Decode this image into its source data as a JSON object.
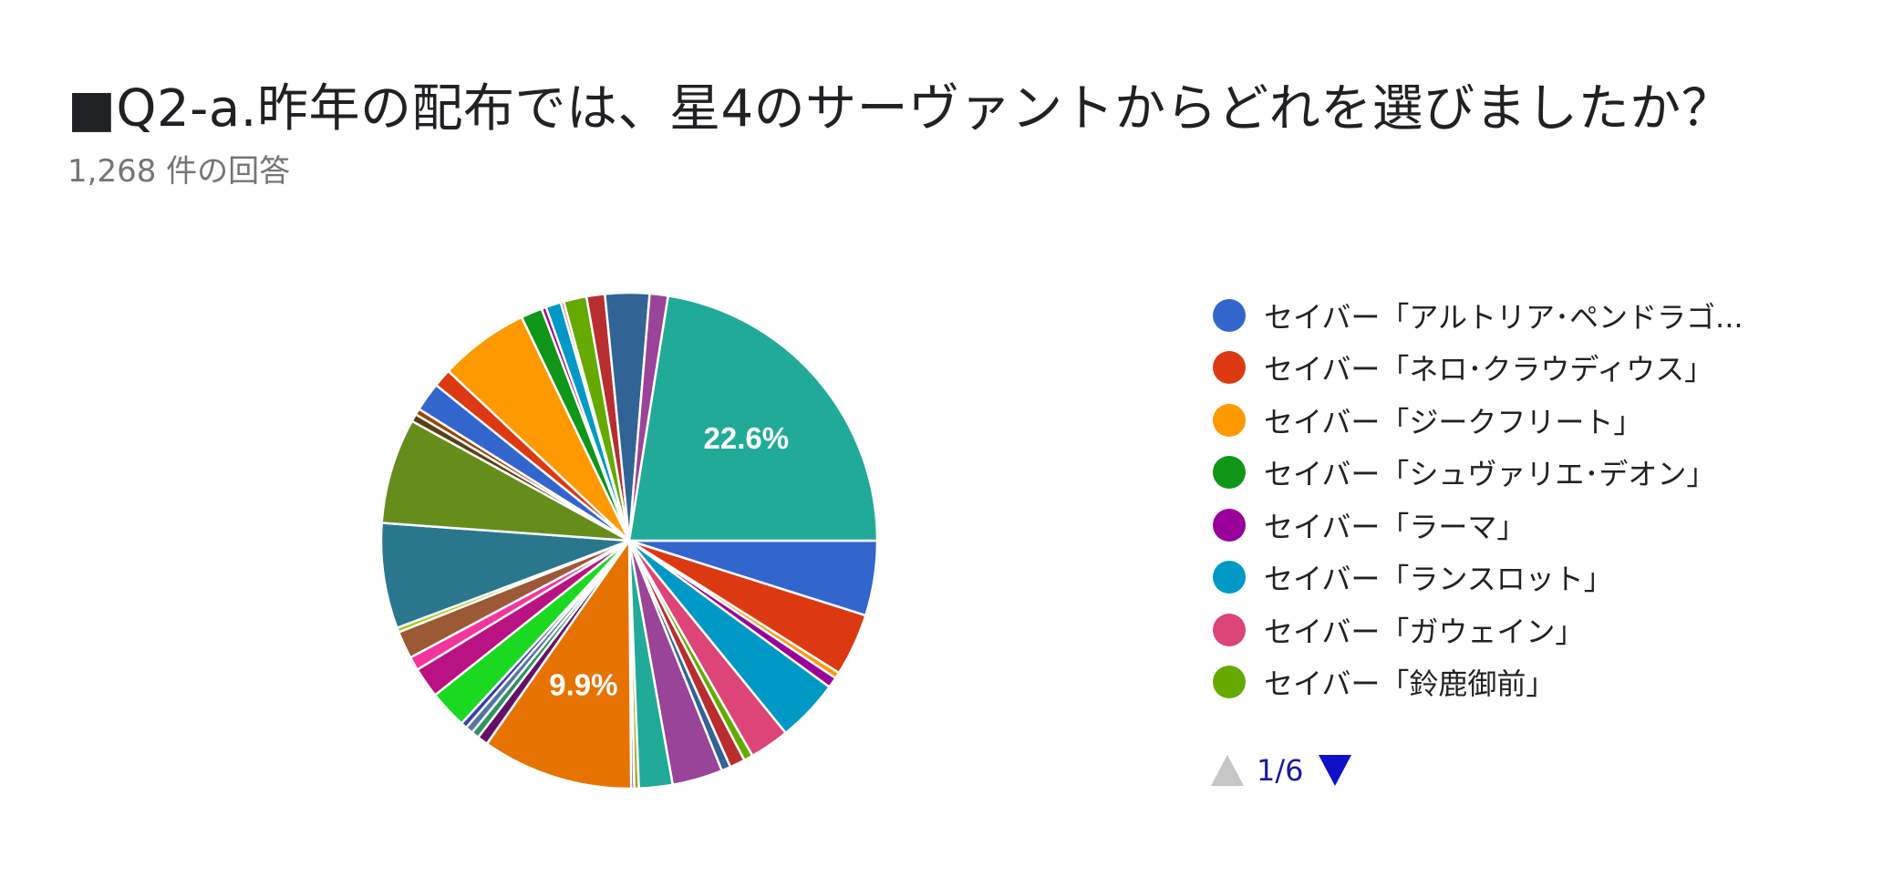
{
  "header": {
    "title": "■Q2-a.昨年の配布では、星4のサーヴァントからどれを選びましたか？",
    "subtitle": "1,268 件の回答"
  },
  "legend": {
    "items": [
      {
        "label": "セイバー「アルトリア･ペンドラゴ...",
        "color": "#3366cc"
      },
      {
        "label": "セイバー「ネロ･クラウディウス」",
        "color": "#dc3912"
      },
      {
        "label": "セイバー「ジークフリート」",
        "color": "#ff9900"
      },
      {
        "label": "セイバー「シュヴァリエ･デオン」",
        "color": "#109618"
      },
      {
        "label": "セイバー「ラーマ」",
        "color": "#990099"
      },
      {
        "label": "セイバー「ランスロット」",
        "color": "#0099c6"
      },
      {
        "label": "セイバー「ガウェイン」",
        "color": "#dd4477"
      },
      {
        "label": "セイバー「鈴鹿御前」",
        "color": "#66aa00"
      }
    ]
  },
  "pager": {
    "text": "1/6"
  },
  "chart_data": {
    "type": "pie",
    "title": "■Q2-a.昨年の配布では、星4のサーヴァントからどれを選びましたか？",
    "subtitle": "1,268 件の回答",
    "legend_position": "right",
    "slices": [
      {
        "value": 4.9,
        "color": "#3366cc"
      },
      {
        "value": 4.1,
        "color": "#dc3912"
      },
      {
        "value": 0.4,
        "color": "#ff9900"
      },
      {
        "value": 0.7,
        "color": "#990099"
      },
      {
        "value": 4.1,
        "color": "#0099c6"
      },
      {
        "value": 2.6,
        "color": "#dd4477"
      },
      {
        "value": 0.6,
        "color": "#66aa00"
      },
      {
        "value": 1.0,
        "color": "#b82e2e"
      },
      {
        "value": 0.6,
        "color": "#316395"
      },
      {
        "value": 3.3,
        "color": "#994499"
      },
      {
        "value": 2.2,
        "color": "#22aa99"
      },
      {
        "value": 0.3,
        "color": "#aaaa11"
      },
      {
        "value": 0.2,
        "color": "#6633cc"
      },
      {
        "value": 9.9,
        "color": "#e67300",
        "label": "9.9%"
      },
      {
        "value": 0.7,
        "color": "#651067"
      },
      {
        "value": 0.5,
        "color": "#329262"
      },
      {
        "value": 0.5,
        "color": "#5574a6"
      },
      {
        "value": 0.4,
        "color": "#3b3eac"
      },
      {
        "value": 2.5,
        "color": "#1bd920"
      },
      {
        "value": 2.0,
        "color": "#b91383"
      },
      {
        "value": 0.9,
        "color": "#f4359e"
      },
      {
        "value": 1.8,
        "color": "#9c5935"
      },
      {
        "value": 0.3,
        "color": "#a9c413"
      },
      {
        "value": 6.9,
        "color": "#2a778d"
      },
      {
        "value": 6.9,
        "color": "#668d1c"
      },
      {
        "value": 0.5,
        "color": "#5a3e18"
      },
      {
        "value": 0.4,
        "color": "#994400"
      },
      {
        "value": 1.9,
        "color": "#3366cc"
      },
      {
        "value": 1.2,
        "color": "#dc3912"
      },
      {
        "value": 5.9,
        "color": "#ff9900"
      },
      {
        "value": 1.4,
        "color": "#109618"
      },
      {
        "value": 0.3,
        "color": "#990099"
      },
      {
        "value": 1.0,
        "color": "#0099c6"
      },
      {
        "value": 0.2,
        "color": "#dd4477"
      },
      {
        "value": 1.5,
        "color": "#66aa00"
      },
      {
        "value": 1.2,
        "color": "#b82e2e"
      },
      {
        "value": 2.9,
        "color": "#316395"
      },
      {
        "value": 1.2,
        "color": "#994499"
      },
      {
        "value": 22.6,
        "color": "#22aa99",
        "label": "22.6%"
      }
    ]
  }
}
